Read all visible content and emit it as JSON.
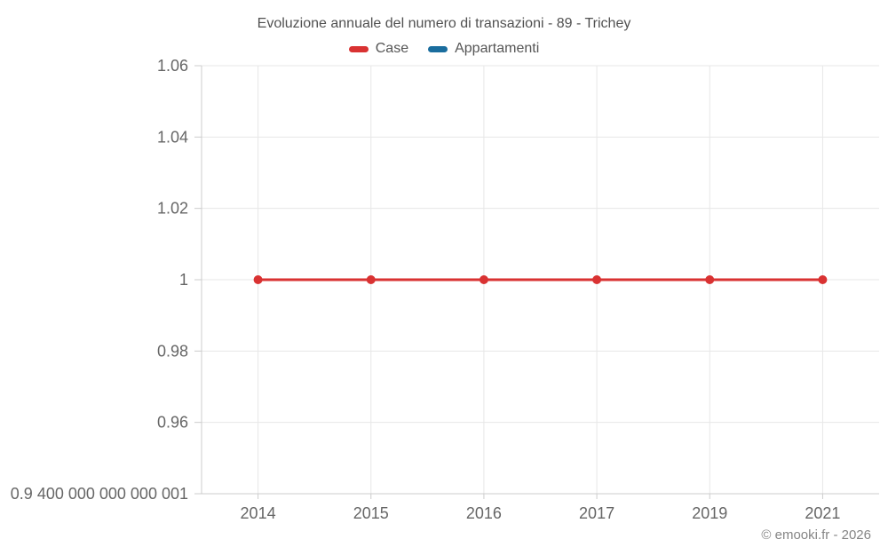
{
  "watermark": "© emooki.fr - 2026",
  "colors": {
    "grid": "#e7e7e7",
    "axis": "#cccccc",
    "tick_text": "#666666",
    "title_text": "#515151",
    "watermark_text": "#858585",
    "background": "#ffffff"
  },
  "chart_data": {
    "type": "line",
    "title": "Evoluzione annuale del numero di transazioni - 89 - Trichey",
    "categories": [
      "2014",
      "2015",
      "2016",
      "2017",
      "2019",
      "2021"
    ],
    "series": [
      {
        "name": "Case",
        "color": "#d93232",
        "values": [
          1,
          1,
          1,
          1,
          1,
          1
        ]
      },
      {
        "name": "Appartamenti",
        "color": "#1a6d9e",
        "values": []
      }
    ],
    "ylim": [
      0.94,
      1.06
    ],
    "yticks": [
      1.06,
      1.04,
      1.02,
      1,
      0.98,
      0.96,
      0.94
    ],
    "ytick_labels": [
      "1.06",
      "1.04",
      "1.02",
      "1",
      "0.98",
      "0.96",
      "0.9 400 000 000 000 001"
    ],
    "grid": true,
    "legend_position": "top",
    "marker": "circle",
    "marker_radius": 5,
    "line_width": 3
  }
}
